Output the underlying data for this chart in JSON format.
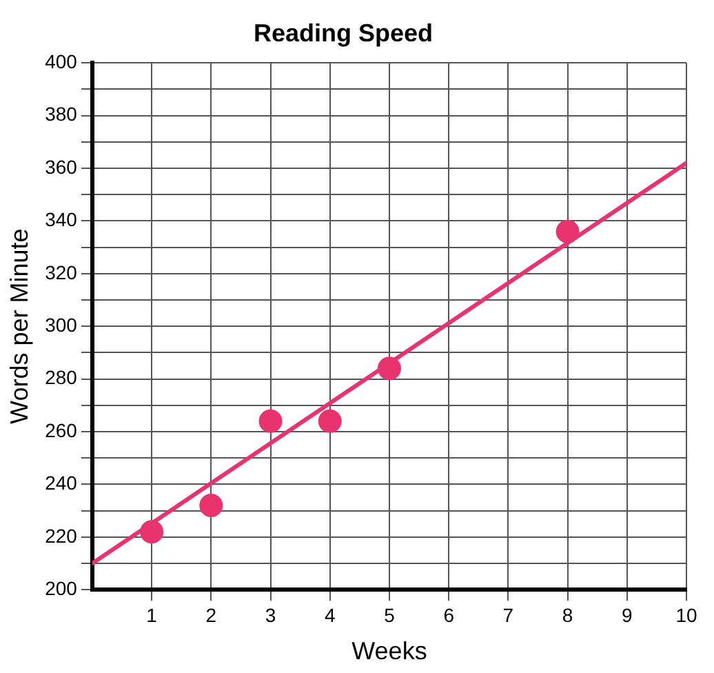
{
  "chart_data": {
    "type": "scatter",
    "title": "Reading Speed",
    "xlabel": "Weeks",
    "ylabel": "Words per Minute",
    "xlim": [
      0,
      10
    ],
    "xticks": [
      1,
      2,
      3,
      4,
      5,
      6,
      7,
      8,
      9,
      10
    ],
    "ylim": [
      200,
      400
    ],
    "yticks": [
      200,
      {
        "value": 210,
        "label": null
      },
      220,
      {
        "value": 230,
        "label": null
      },
      240,
      {
        "value": 250,
        "label": null
      },
      260,
      {
        "value": 270,
        "label": null
      },
      280,
      {
        "value": 290,
        "label": null
      },
      300,
      {
        "value": 310,
        "label": null
      },
      320,
      {
        "value": 330,
        "label": null
      },
      340,
      {
        "value": 350,
        "label": null
      },
      360,
      {
        "value": 370,
        "label": null
      },
      380,
      {
        "value": 390,
        "label": null
      },
      400
    ],
    "grid": true,
    "legend": false,
    "marker": "circle",
    "series": [
      {
        "color": "#e8336e",
        "x": [
          1,
          2,
          3,
          4,
          5,
          8
        ],
        "values": [
          222,
          232,
          264,
          264,
          284,
          336
        ]
      },
      {
        "type": "line",
        "color": "#e8336e",
        "x": [
          0,
          10
        ],
        "values": [
          210,
          362
        ],
        "marker": "none",
        "line_style": "solid"
      }
    ]
  }
}
